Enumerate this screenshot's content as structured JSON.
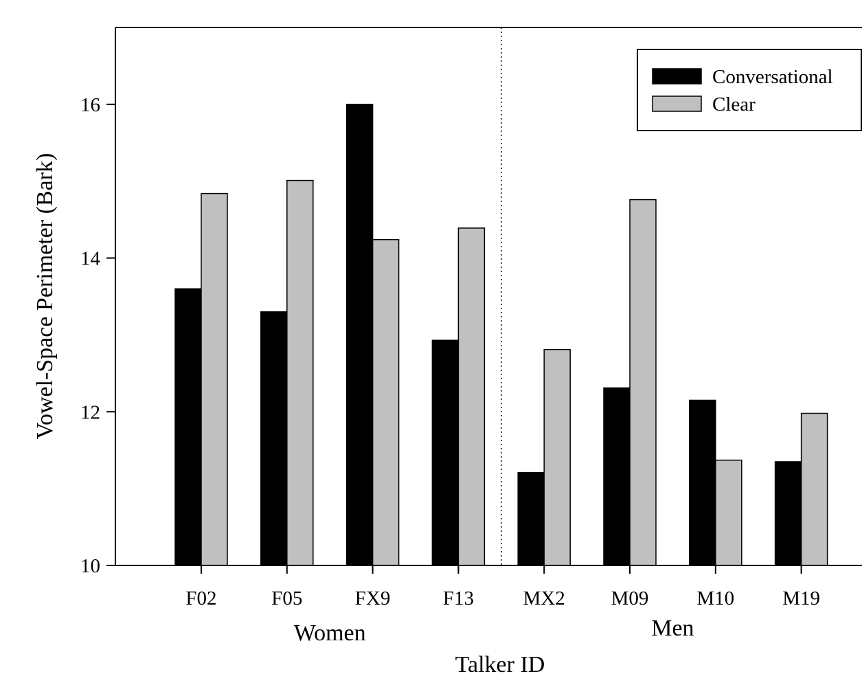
{
  "chart_data": {
    "type": "bar",
    "title": "",
    "xlabel": "Talker ID",
    "ylabel": "Vowel-Space Perimeter (Bark)",
    "ylim": [
      10,
      17
    ],
    "yticks": [
      10,
      12,
      14,
      16
    ],
    "categories": [
      "F02",
      "F05",
      "FX9",
      "F13",
      "MX2",
      "M09",
      "M10",
      "M19"
    ],
    "groups": [
      {
        "label": "Women",
        "categories": [
          "F02",
          "F05",
          "FX9",
          "F13"
        ]
      },
      {
        "label": "Men",
        "categories": [
          "MX2",
          "M09",
          "M10",
          "M19"
        ]
      }
    ],
    "series": [
      {
        "name": "Conversational",
        "color": "#000000",
        "values": [
          13.6,
          13.3,
          16.0,
          12.93,
          11.21,
          12.31,
          12.15,
          11.35
        ]
      },
      {
        "name": "Clear",
        "color": "#c0c0c0",
        "values": [
          14.84,
          15.01,
          14.24,
          14.39,
          12.81,
          14.76,
          11.37,
          11.98
        ]
      }
    ],
    "legend_position": "top-right",
    "grid": false,
    "group_divider": "dotted vertical line between F13 and MX2"
  }
}
